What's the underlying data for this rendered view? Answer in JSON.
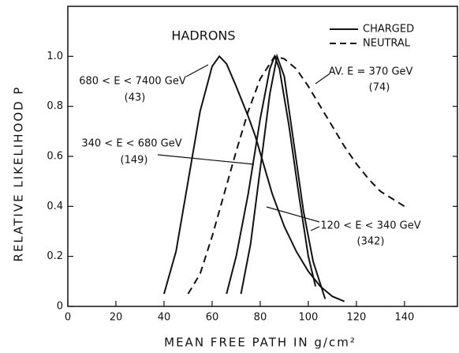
{
  "chart_data": {
    "type": "line",
    "title": "HADRONS",
    "x_label": "MEAN FREE PATH IN g/cm²",
    "y_label": "RELATIVE LIKELIHOOD P",
    "xlim": [
      0,
      162
    ],
    "ylim": [
      0,
      1.2
    ],
    "xticks": [
      0,
      20,
      40,
      60,
      80,
      100,
      120,
      140
    ],
    "yticks": [
      0,
      0.2,
      0.4,
      0.6,
      0.8,
      {
        "value": 1,
        "label": "1.0"
      }
    ],
    "legend": [
      {
        "label": "CHARGED",
        "dashed": false
      },
      {
        "label": "NEUTRAL",
        "dashed": true
      }
    ],
    "series": [
      {
        "name": "680 < E < 7400 GeV",
        "count": "(43)",
        "dashed": false,
        "color": "#111111",
        "x": [
          40,
          45,
          50,
          55,
          60,
          63,
          66,
          70,
          75,
          78,
          85,
          90,
          95,
          100,
          105,
          110,
          115
        ],
        "values": [
          0.05,
          0.22,
          0.5,
          0.78,
          0.96,
          1.0,
          0.97,
          0.88,
          0.76,
          0.68,
          0.45,
          0.32,
          0.22,
          0.14,
          0.08,
          0.04,
          0.02
        ]
      },
      {
        "name": "340 < E < 680 GeV",
        "count": "(149)",
        "dashed": false,
        "color": "#111111",
        "x": [
          66,
          70,
          75,
          80,
          84,
          86,
          88,
          92,
          96,
          100,
          103
        ],
        "values": [
          0.05,
          0.2,
          0.45,
          0.75,
          0.95,
          1.0,
          0.95,
          0.72,
          0.45,
          0.2,
          0.08
        ]
      },
      {
        "name": "120 < E < 340 GeV",
        "count": "(342)",
        "dashed": false,
        "color": "#111111",
        "x": [
          72,
          76,
          80,
          84,
          87,
          90,
          94,
          98,
          102,
          107
        ],
        "values": [
          0.05,
          0.25,
          0.55,
          0.85,
          1.0,
          0.92,
          0.65,
          0.38,
          0.18,
          0.03
        ]
      },
      {
        "name": "AV. E = 370 GeV",
        "count": "(74)",
        "dashed": true,
        "color": "#111111",
        "x": [
          50,
          55,
          60,
          65,
          70,
          75,
          80,
          86,
          90,
          95,
          100,
          105,
          110,
          115,
          120,
          125,
          130,
          135,
          140
        ],
        "values": [
          0.05,
          0.13,
          0.28,
          0.45,
          0.62,
          0.78,
          0.91,
          1.0,
          0.99,
          0.95,
          0.88,
          0.8,
          0.72,
          0.64,
          0.57,
          0.51,
          0.46,
          0.43,
          0.4
        ]
      }
    ]
  }
}
